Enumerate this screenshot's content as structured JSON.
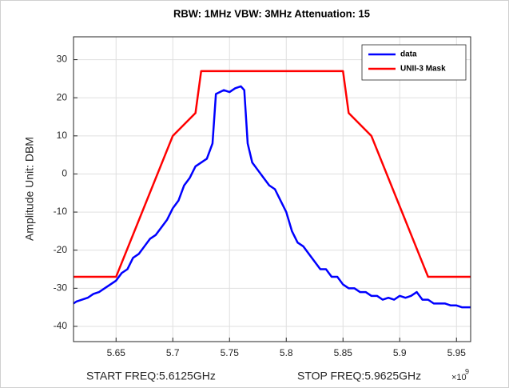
{
  "chart_data": {
    "type": "line",
    "title": "RBW: 1MHz   VBW: 3MHz  Attenuation: 15",
    "y_label": "Amplitude Unit: DBM",
    "start_label": "START FREQ:5.6125GHz",
    "stop_label": "STOP FREQ:5.9625GHz",
    "x_multiplier": "×10",
    "x_multiplier_exponent": "9",
    "xlim": [
      5.6125,
      5.9625
    ],
    "ylim": [
      -44,
      36
    ],
    "xticks": [
      5.65,
      5.7,
      5.75,
      5.8,
      5.85,
      5.9,
      5.95
    ],
    "yticks": [
      -40,
      -30,
      -20,
      -10,
      0,
      10,
      20,
      30
    ],
    "grid": true,
    "legend": "northeast",
    "series": [
      {
        "name": "data",
        "color": "#0000ff",
        "x": [
          5.6125,
          5.615,
          5.62,
          5.625,
          5.63,
          5.635,
          5.64,
          5.645,
          5.65,
          5.655,
          5.66,
          5.665,
          5.67,
          5.675,
          5.68,
          5.685,
          5.69,
          5.695,
          5.7,
          5.705,
          5.71,
          5.715,
          5.72,
          5.725,
          5.73,
          5.735,
          5.738,
          5.745,
          5.75,
          5.755,
          5.76,
          5.763,
          5.766,
          5.77,
          5.775,
          5.78,
          5.785,
          5.79,
          5.795,
          5.8,
          5.805,
          5.81,
          5.815,
          5.82,
          5.825,
          5.83,
          5.835,
          5.84,
          5.845,
          5.85,
          5.855,
          5.86,
          5.865,
          5.87,
          5.875,
          5.88,
          5.885,
          5.89,
          5.895,
          5.9,
          5.905,
          5.91,
          5.915,
          5.92,
          5.925,
          5.93,
          5.935,
          5.94,
          5.945,
          5.95,
          5.955,
          5.9625
        ],
        "values": [
          -34,
          -33.5,
          -33,
          -32.5,
          -31.5,
          -31,
          -30,
          -29,
          -28,
          -26,
          -25,
          -22,
          -21,
          -19,
          -17,
          -16,
          -14,
          -12,
          -9,
          -7,
          -3,
          -1,
          2,
          3,
          4,
          8,
          21,
          22,
          21.5,
          22.5,
          23,
          22,
          8,
          3,
          1,
          -1,
          -3,
          -4,
          -7,
          -10,
          -15,
          -18,
          -19,
          -21,
          -23,
          -25,
          -25,
          -27,
          -27,
          -29,
          -30,
          -30,
          -31,
          -31,
          -32,
          -32,
          -33,
          -32.5,
          -33,
          -32,
          -32.5,
          -32,
          -31,
          -33,
          -33,
          -34,
          -34,
          -34,
          -34.5,
          -34.5,
          -35,
          -35
        ]
      },
      {
        "name": "UNII-3 Mask",
        "color": "#ff0000",
        "x": [
          5.6125,
          5.65,
          5.7,
          5.72,
          5.725,
          5.85,
          5.855,
          5.875,
          5.925,
          5.9625
        ],
        "values": [
          -27,
          -27,
          10,
          16,
          27,
          27,
          16,
          10,
          -27,
          -27
        ]
      }
    ]
  }
}
